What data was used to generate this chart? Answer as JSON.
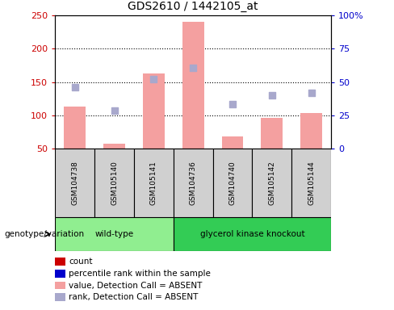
{
  "title": "GDS2610 / 1442105_at",
  "samples": [
    "GSM104738",
    "GSM105140",
    "GSM105141",
    "GSM104736",
    "GSM104740",
    "GSM105142",
    "GSM105144"
  ],
  "bar_values": [
    113,
    58,
    163,
    240,
    68,
    96,
    104
  ],
  "dot_values": [
    143,
    107,
    155,
    172,
    117,
    130,
    134
  ],
  "bar_color": "#f4a0a0",
  "dot_color": "#a8a8cc",
  "ylim_left": [
    50,
    250
  ],
  "yticks_left": [
    50,
    100,
    150,
    200,
    250
  ],
  "yticks_right": [
    0,
    25,
    50,
    75,
    100
  ],
  "yticklabels_right": [
    "0",
    "25",
    "50",
    "75",
    "100%"
  ],
  "grid_lines": [
    100,
    150,
    200
  ],
  "groups": [
    {
      "label": "wild-type",
      "indices": [
        0,
        1,
        2
      ],
      "color": "#90ee90"
    },
    {
      "label": "glycerol kinase knockout",
      "indices": [
        3,
        4,
        5,
        6
      ],
      "color": "#33cc55"
    }
  ],
  "genotype_label": "genotype/variation",
  "legend_items": [
    {
      "color": "#cc0000",
      "label": "count"
    },
    {
      "color": "#0000cc",
      "label": "percentile rank within the sample"
    },
    {
      "color": "#f4a0a0",
      "label": "value, Detection Call = ABSENT"
    },
    {
      "color": "#a8a8cc",
      "label": "rank, Detection Call = ABSENT"
    }
  ],
  "sample_box_color": "#d0d0d0",
  "left_tick_color": "#cc0000",
  "right_tick_color": "#0000cc"
}
